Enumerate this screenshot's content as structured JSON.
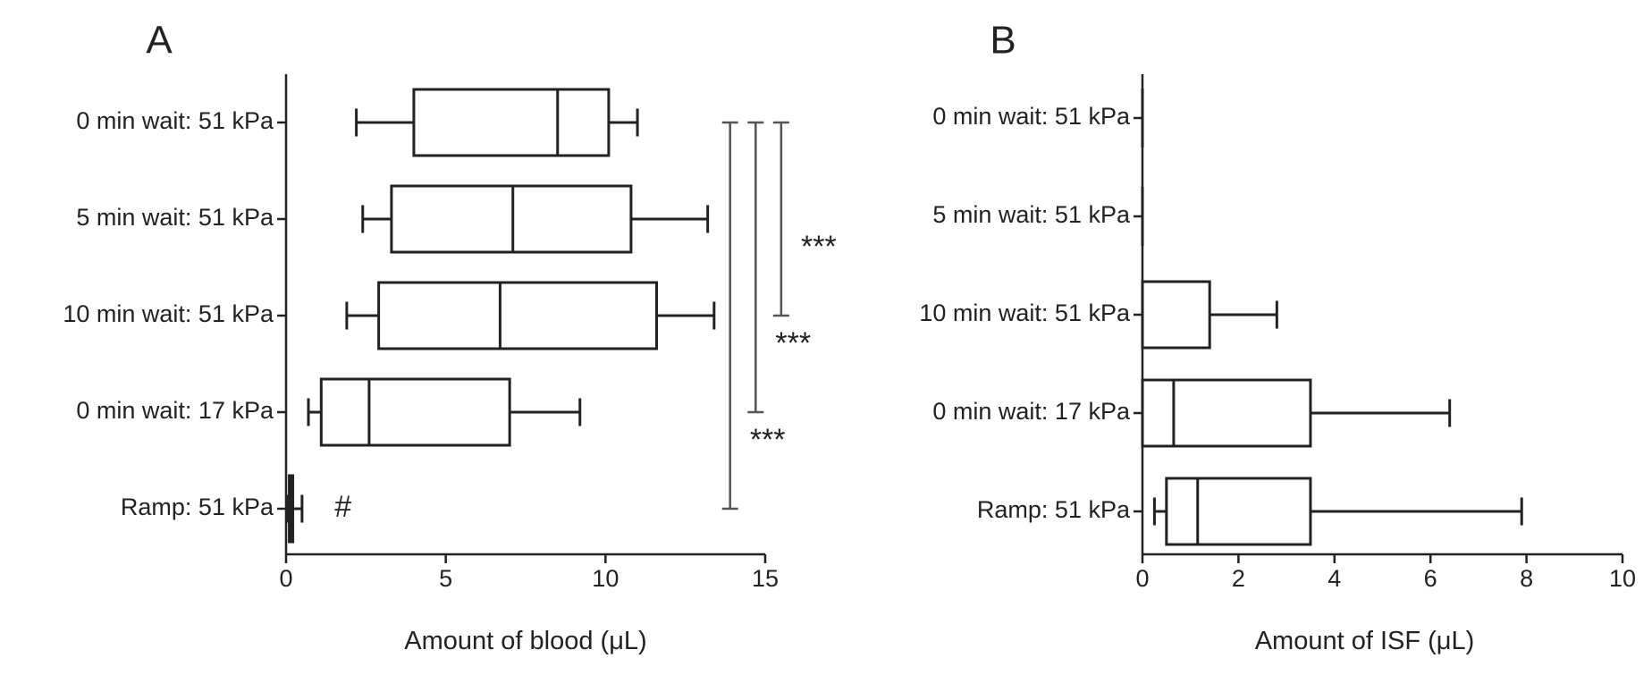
{
  "chart_data": [
    {
      "panel_label": "A",
      "type": "boxplot",
      "orientation": "horizontal",
      "xlabel": "Amount of blood (μL)",
      "xlim": [
        0,
        15
      ],
      "xticks": [
        0,
        5,
        10,
        15
      ],
      "categories": [
        "0 min wait: 51 kPa",
        "5 min wait: 51 kPa",
        "10 min wait: 51 kPa",
        "0 min wait: 17 kPa",
        "Ramp: 51 kPa"
      ],
      "boxes": [
        {
          "min": 2.2,
          "q1": 4.0,
          "median": 8.5,
          "q3": 10.1,
          "max": 11.0
        },
        {
          "min": 2.4,
          "q1": 3.3,
          "median": 7.1,
          "q3": 10.8,
          "max": 13.2
        },
        {
          "min": 1.9,
          "q1": 2.9,
          "median": 6.7,
          "q3": 11.6,
          "max": 13.4
        },
        {
          "min": 0.7,
          "q1": 1.1,
          "median": 2.6,
          "q3": 7.0,
          "max": 9.2
        },
        {
          "min": 0.05,
          "q1": 0.1,
          "median": 0.15,
          "q3": 0.2,
          "max": 0.5
        }
      ],
      "annotations": [
        {
          "text": "#",
          "category": "Ramp: 51 kPa",
          "x": 1.7
        }
      ],
      "significance": [
        {
          "x": 13.9,
          "from": "0 min wait: 51 kPa",
          "to": "Ramp: 51 kPa",
          "label": "***"
        },
        {
          "x": 14.7,
          "from": "0 min wait: 51 kPa",
          "to": "0 min wait: 17 kPa",
          "label": "***"
        },
        {
          "x": 15.5,
          "from": "0 min wait: 51 kPa",
          "to": "10 min wait: 51 kPa",
          "label": "***"
        }
      ]
    },
    {
      "panel_label": "B",
      "type": "boxplot",
      "orientation": "horizontal",
      "xlabel": "Amount of ISF (μL)",
      "xlim": [
        0,
        10
      ],
      "xticks": [
        0,
        2,
        4,
        6,
        8,
        10
      ],
      "categories": [
        "0 min wait: 51 kPa",
        "5 min wait: 51 kPa",
        "10 min wait: 51 kPa",
        "0 min wait: 17 kPa",
        "Ramp: 51 kPa"
      ],
      "boxes": [
        {
          "min": 0,
          "q1": 0,
          "median": 0,
          "q3": 0,
          "max": 0
        },
        {
          "min": 0,
          "q1": 0,
          "median": 0,
          "q3": 0,
          "max": 0
        },
        {
          "min": 0,
          "q1": 0,
          "median": 0,
          "q3": 1.4,
          "max": 2.8
        },
        {
          "min": 0,
          "q1": 0,
          "median": 0.65,
          "q3": 3.5,
          "max": 6.4
        },
        {
          "min": 0.25,
          "q1": 0.5,
          "median": 1.15,
          "q3": 3.5,
          "max": 7.9
        }
      ],
      "annotations": [],
      "significance": []
    }
  ]
}
